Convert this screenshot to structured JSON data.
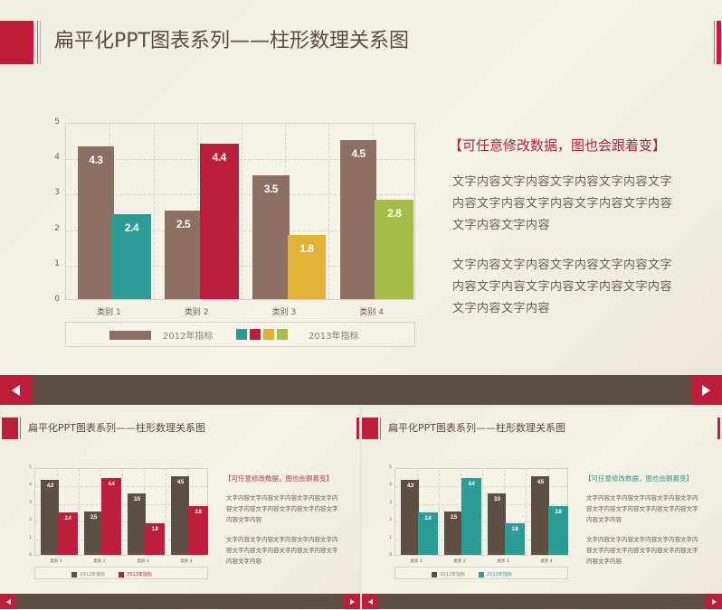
{
  "slide_title": "扁平化PPT图表系列——柱形数理关系图",
  "side": {
    "heading": "【可任意修改数据，图也会跟着变】",
    "paragraphs": [
      "文字内容文字内容文字内容文字内容文字内容文字内容文字内容文字内容文字内容文字内容文字内容",
      "文字内容文字内容文字内容文字内容文字内容文字内容文字内容文字内容文字内容文字内容文字内容"
    ]
  },
  "nav": {
    "prev": "previous-slide",
    "next": "next-slide"
  },
  "colors": {
    "accent_red": "#bd1e3a",
    "bar_2012_main": "#8b7063",
    "bar_2012_thumb": "#5e4f45",
    "teal": "#2e9b96",
    "red": "#bb1f3c",
    "yellow": "#e0b236",
    "green": "#a6bd4a",
    "navbar": "#5e4f45"
  },
  "chart_data": [
    {
      "type": "bar",
      "title": "",
      "categories": [
        "类别 1",
        "类别 2",
        "类别 3",
        "类别 4"
      ],
      "series": [
        {
          "name": "2012年指标",
          "values": [
            4.3,
            2.5,
            3.5,
            4.5
          ],
          "color": "#8b7063"
        },
        {
          "name": "2013年指标",
          "values": [
            2.4,
            4.4,
            1.8,
            2.8
          ],
          "colors": [
            "#2e9b96",
            "#bb1f3c",
            "#e0b236",
            "#a6bd4a"
          ]
        }
      ],
      "yticks": [
        "0",
        "1",
        "2",
        "3",
        "4",
        "5"
      ],
      "ylim": [
        0,
        5
      ],
      "grid": true,
      "legend_position": "bottom"
    },
    {
      "type": "bar",
      "title": "",
      "categories": [
        "类别 1",
        "类别 2",
        "类别 3",
        "类别 4"
      ],
      "series": [
        {
          "name": "2012年指标",
          "values": [
            4.3,
            2.5,
            3.5,
            4.5
          ],
          "color": "#5e4f45"
        },
        {
          "name": "2013年指标",
          "values": [
            2.4,
            4.4,
            1.8,
            2.8
          ],
          "color": "#bb1f3c"
        }
      ],
      "yticks": [
        "0",
        "1",
        "2",
        "3",
        "4",
        "5"
      ],
      "ylim": [
        0,
        5
      ],
      "grid": true,
      "legend_position": "bottom"
    },
    {
      "type": "bar",
      "title": "",
      "categories": [
        "类别 1",
        "类别 2",
        "类别 3",
        "类别 4"
      ],
      "series": [
        {
          "name": "2012年指标",
          "values": [
            4.3,
            2.5,
            3.5,
            4.5
          ],
          "color": "#5e4f45"
        },
        {
          "name": "2013年指标",
          "values": [
            2.4,
            4.4,
            1.8,
            2.8
          ],
          "color": "#2e9b96"
        }
      ],
      "yticks": [
        "0",
        "1",
        "2",
        "3",
        "4",
        "5"
      ],
      "ylim": [
        0,
        5
      ],
      "grid": true,
      "legend_position": "bottom"
    }
  ],
  "thumbs": [
    {
      "heading_color": "#c0374f"
    },
    {
      "heading_color": "#2e9b96"
    }
  ]
}
